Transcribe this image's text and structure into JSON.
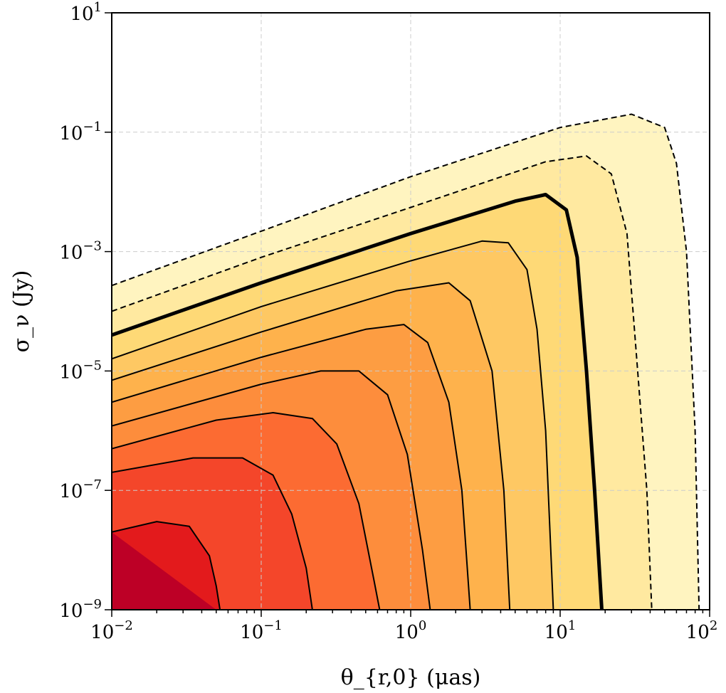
{
  "chart_data": {
    "type": "line",
    "title": "",
    "xlabel": "θ_{r,0} (μas)",
    "ylabel": "σ_ν (Jy)",
    "x_scale": "log",
    "y_scale": "log",
    "xlim": [
      0.01,
      100
    ],
    "ylim": [
      1e-09,
      10
    ],
    "grid": true,
    "x_ticks": [
      {
        "value": 0.01,
        "base": "10",
        "exp": "−2"
      },
      {
        "value": 0.1,
        "base": "10",
        "exp": "−1"
      },
      {
        "value": 1,
        "base": "10",
        "exp": "0"
      },
      {
        "value": 10,
        "base": "10",
        "exp": "1"
      },
      {
        "value": 100,
        "base": "10",
        "exp": "2"
      }
    ],
    "y_ticks": [
      {
        "value": 1e-09,
        "base": "10",
        "exp": "−9"
      },
      {
        "value": 1e-07,
        "base": "10",
        "exp": "−7"
      },
      {
        "value": 1e-05,
        "base": "10",
        "exp": "−5"
      },
      {
        "value": 0.001,
        "base": "10",
        "exp": "−3"
      },
      {
        "value": 0.1,
        "base": "10",
        "exp": "−1"
      },
      {
        "value": 10,
        "base": "10",
        "exp": "1"
      }
    ],
    "colormap": [
      "#bd0026",
      "#e31a1c",
      "#fc4e2a",
      "#fd8d3c",
      "#feb24c",
      "#fed976",
      "#fff7c2"
    ],
    "series": [
      {
        "style": "dashed",
        "width": 2,
        "points": [
          [
            0.01,
            0.00027
          ],
          [
            0.1,
            0.0022
          ],
          [
            1,
            0.018
          ],
          [
            10,
            0.12
          ],
          [
            30,
            0.2
          ],
          [
            50,
            0.12
          ],
          [
            60,
            0.03
          ],
          [
            70,
            0.001
          ],
          [
            80,
            1e-06
          ],
          [
            85,
            1e-09
          ]
        ]
      },
      {
        "style": "dashed",
        "width": 2,
        "points": [
          [
            0.01,
            0.0001
          ],
          [
            0.1,
            0.0008
          ],
          [
            1,
            0.0055
          ],
          [
            8,
            0.032
          ],
          [
            15,
            0.04
          ],
          [
            22,
            0.02
          ],
          [
            28,
            0.002
          ],
          [
            33,
            1e-05
          ],
          [
            38,
            1e-07
          ],
          [
            41,
            1e-09
          ]
        ]
      },
      {
        "style": "solid",
        "width": 5,
        "points": [
          [
            0.01,
            4e-05
          ],
          [
            0.1,
            0.0003
          ],
          [
            1,
            0.002
          ],
          [
            5,
            0.007
          ],
          [
            8,
            0.009
          ],
          [
            11,
            0.005
          ],
          [
            13,
            0.0008
          ],
          [
            15,
            1e-05
          ],
          [
            17,
            1e-07
          ],
          [
            19,
            1e-09
          ]
        ]
      },
      {
        "style": "solid",
        "width": 2,
        "points": [
          [
            0.01,
            1.6e-05
          ],
          [
            0.1,
            0.00012
          ],
          [
            1,
            0.0007
          ],
          [
            3,
            0.0015
          ],
          [
            4.5,
            0.0014
          ],
          [
            6,
            0.0005
          ],
          [
            7,
            5e-05
          ],
          [
            8,
            1e-06
          ],
          [
            9,
            1e-09
          ]
        ]
      },
      {
        "style": "solid",
        "width": 2,
        "points": [
          [
            0.01,
            7e-06
          ],
          [
            0.1,
            4.5e-05
          ],
          [
            0.8,
            0.00022
          ],
          [
            1.8,
            0.0003
          ],
          [
            2.5,
            0.00015
          ],
          [
            3.5,
            1e-05
          ],
          [
            4.2,
            1e-07
          ],
          [
            4.6,
            1e-09
          ]
        ]
      },
      {
        "style": "solid",
        "width": 2,
        "points": [
          [
            0.01,
            3e-06
          ],
          [
            0.1,
            1.7e-05
          ],
          [
            0.5,
            5e-05
          ],
          [
            0.9,
            6e-05
          ],
          [
            1.3,
            3e-05
          ],
          [
            1.8,
            3e-06
          ],
          [
            2.2,
            1e-07
          ],
          [
            2.5,
            1e-09
          ]
        ]
      },
      {
        "style": "solid",
        "width": 2,
        "points": [
          [
            0.01,
            1.2e-06
          ],
          [
            0.1,
            6e-06
          ],
          [
            0.25,
            1e-05
          ],
          [
            0.45,
            1e-05
          ],
          [
            0.7,
            4e-06
          ],
          [
            0.95,
            4e-07
          ],
          [
            1.2,
            1e-08
          ],
          [
            1.35,
            1e-09
          ]
        ]
      },
      {
        "style": "solid",
        "width": 2,
        "points": [
          [
            0.01,
            5e-07
          ],
          [
            0.05,
            1.5e-06
          ],
          [
            0.12,
            2e-06
          ],
          [
            0.22,
            1.6e-06
          ],
          [
            0.32,
            6e-07
          ],
          [
            0.45,
            6e-08
          ],
          [
            0.57,
            3e-09
          ],
          [
            0.62,
            1e-09
          ]
        ]
      },
      {
        "style": "solid",
        "width": 2,
        "points": [
          [
            0.01,
            2e-07
          ],
          [
            0.035,
            3.5e-07
          ],
          [
            0.075,
            3.5e-07
          ],
          [
            0.12,
            1.8e-07
          ],
          [
            0.16,
            4e-08
          ],
          [
            0.2,
            5e-09
          ],
          [
            0.22,
            1e-09
          ]
        ]
      },
      {
        "style": "solid",
        "width": 2,
        "points": [
          [
            0.01,
            2e-08
          ],
          [
            0.02,
            3e-08
          ],
          [
            0.033,
            2.5e-08
          ],
          [
            0.045,
            8e-09
          ],
          [
            0.05,
            2.5e-09
          ],
          [
            0.053,
            1e-09
          ]
        ]
      }
    ]
  }
}
